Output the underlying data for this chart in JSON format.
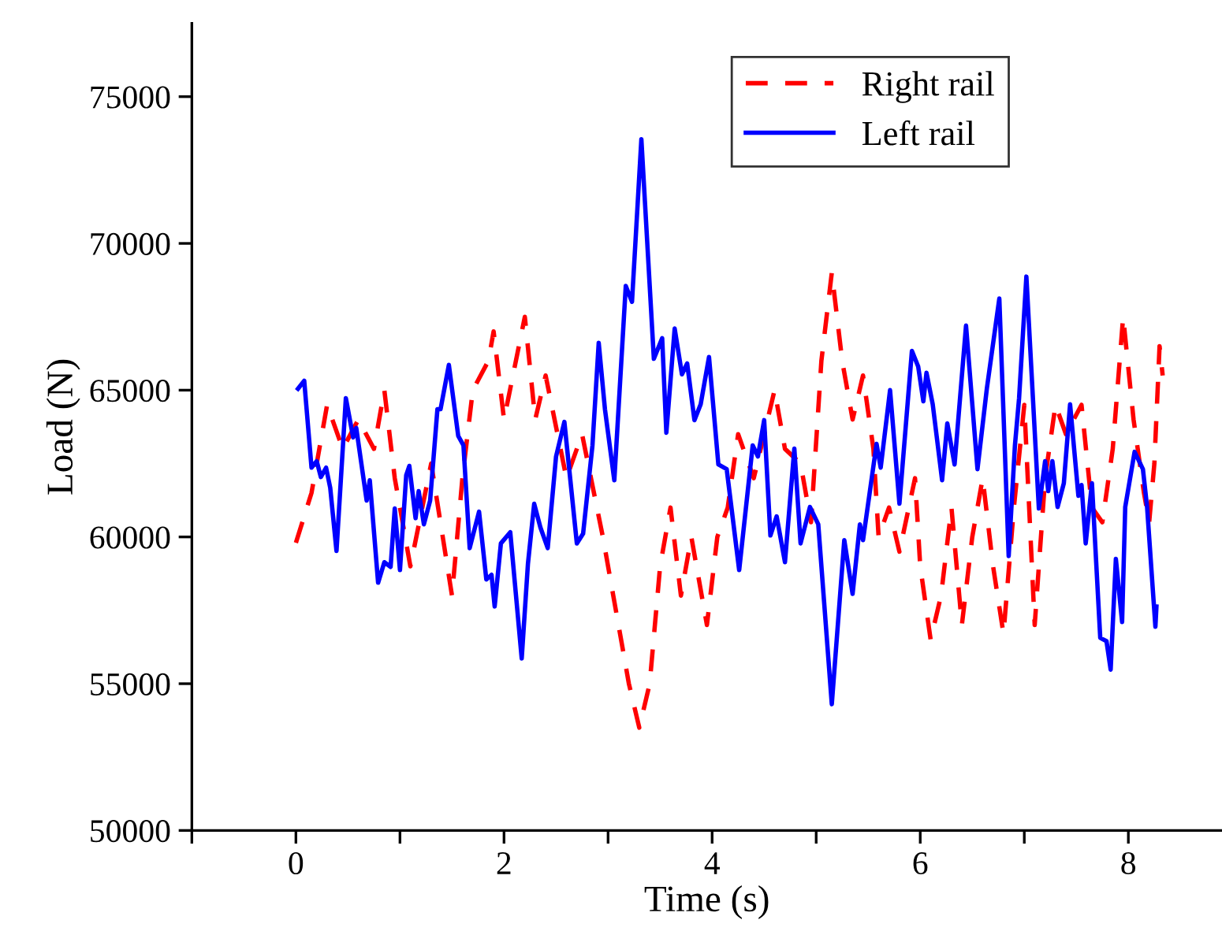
{
  "chart_data": {
    "type": "line",
    "xlabel": "Time (s)",
    "ylabel": "Load (N)",
    "xlim": [
      -1,
      8.9
    ],
    "ylim": [
      50000,
      77500
    ],
    "xticks": [
      {
        "value": -1,
        "label": null
      },
      0,
      {
        "value": 1,
        "label": null
      },
      2,
      {
        "value": 3,
        "label": null
      },
      4,
      {
        "value": 5,
        "label": null
      },
      6,
      {
        "value": 7,
        "label": null
      },
      8
    ],
    "yticks": [
      50000,
      55000,
      60000,
      65000,
      70000,
      75000
    ],
    "grid": false,
    "legend": "top right",
    "marker": "none",
    "series": [
      {
        "name": "Right rail",
        "color": "#ff0000",
        "line_style": "dashed",
        "x": [
          0,
          0.15,
          0.3,
          0.45,
          0.6,
          0.75,
          0.85,
          0.95,
          1.1,
          1.3,
          1.5,
          1.6,
          1.7,
          1.85,
          1.9,
          2.0,
          2.2,
          2.3,
          2.4,
          2.6,
          2.75,
          2.95,
          3.05,
          3.2,
          3.3,
          3.4,
          3.5,
          3.6,
          3.7,
          3.8,
          3.95,
          4.05,
          4.15,
          4.25,
          4.4,
          4.6,
          4.7,
          4.85,
          4.95,
          5.05,
          5.15,
          5.25,
          5.35,
          5.45,
          5.55,
          5.6,
          5.7,
          5.8,
          5.95,
          6.0,
          6.1,
          6.2,
          6.3,
          6.4,
          6.5,
          6.6,
          6.7,
          6.8,
          6.9,
          7.0,
          7.1,
          7.2,
          7.3,
          7.4,
          7.55,
          7.65,
          7.75,
          7.85,
          7.95,
          8.05,
          8.15,
          8.2,
          8.25,
          8.3,
          8.33
        ],
        "values": [
          59800,
          61500,
          64500,
          63000,
          64000,
          63000,
          65000,
          62000,
          59000,
          62500,
          58000,
          62000,
          65000,
          66000,
          67000,
          64000,
          67500,
          64000,
          65500,
          62000,
          63500,
          60000,
          58000,
          55000,
          53500,
          55000,
          59000,
          61000,
          58000,
          60000,
          57000,
          60000,
          61000,
          63500,
          62000,
          65000,
          63000,
          62500,
          60500,
          66000,
          69000,
          66000,
          64000,
          65500,
          63000,
          60000,
          61000,
          59500,
          62000,
          59000,
          56500,
          58000,
          61000,
          57000,
          60000,
          62000,
          59000,
          56700,
          61000,
          64500,
          57000,
          62000,
          64500,
          63500,
          64500,
          61000,
          60500,
          63000,
          67500,
          64000,
          61500,
          60500,
          62500,
          66500,
          65500
        ]
      },
      {
        "name": "Left rail",
        "color": "#0000ff",
        "line_style": "solid",
        "x": [
          0.02,
          0.08,
          0.15,
          0.2,
          0.24,
          0.29,
          0.33,
          0.39,
          0.48,
          0.55,
          0.58,
          0.68,
          0.71,
          0.79,
          0.85,
          0.91,
          0.95,
          1.0,
          1.06,
          1.09,
          1.15,
          1.18,
          1.23,
          1.29,
          1.36,
          1.39,
          1.47,
          1.56,
          1.61,
          1.67,
          1.76,
          1.83,
          1.88,
          1.91,
          1.97,
          2.06,
          2.17,
          2.23,
          2.29,
          2.35,
          2.42,
          2.5,
          2.58,
          2.7,
          2.76,
          2.85,
          2.91,
          2.97,
          3.06,
          3.17,
          3.23,
          3.32,
          3.44,
          3.52,
          3.56,
          3.64,
          3.71,
          3.76,
          3.83,
          3.89,
          3.97,
          4.06,
          4.14,
          4.26,
          4.39,
          4.44,
          4.5,
          4.56,
          4.62,
          4.7,
          4.79,
          4.85,
          4.94,
          5.02,
          5.15,
          5.27,
          5.35,
          5.42,
          5.45,
          5.58,
          5.62,
          5.71,
          5.8,
          5.92,
          5.98,
          6.03,
          6.06,
          6.12,
          6.21,
          6.26,
          6.33,
          6.44,
          6.55,
          6.64,
          6.76,
          6.85,
          6.91,
          6.95,
          7.02,
          7.14,
          7.2,
          7.23,
          7.27,
          7.32,
          7.38,
          7.44,
          7.52,
          7.55,
          7.59,
          7.65,
          7.73,
          7.79,
          7.83,
          7.88,
          7.94,
          7.97,
          8.06,
          8.14,
          8.18,
          8.26,
          8.27
        ],
        "values": [
          65050,
          65320,
          62360,
          62580,
          62040,
          62360,
          61670,
          59520,
          64730,
          63390,
          63710,
          61240,
          61930,
          58440,
          59140,
          58980,
          60970,
          58870,
          62100,
          62420,
          60640,
          61560,
          60430,
          61240,
          64350,
          64350,
          65860,
          63440,
          63120,
          59620,
          60860,
          58550,
          58710,
          57630,
          59780,
          60160,
          55860,
          59090,
          61130,
          60320,
          59620,
          62740,
          63920,
          59780,
          60110,
          63120,
          66610,
          64350,
          61930,
          68550,
          68010,
          73550,
          66070,
          66770,
          63550,
          67100,
          65540,
          65910,
          63980,
          64520,
          66130,
          62470,
          62310,
          58870,
          63120,
          62740,
          63980,
          60050,
          60700,
          59140,
          63010,
          59780,
          61020,
          60430,
          54300,
          59890,
          58060,
          60430,
          59890,
          63170,
          62360,
          65000,
          61130,
          66340,
          65810,
          64620,
          65590,
          64520,
          61930,
          63870,
          62470,
          67200,
          62310,
          65050,
          68120,
          59350,
          63120,
          64730,
          68870,
          60970,
          62580,
          61560,
          62580,
          61020,
          61830,
          64520,
          61400,
          61770,
          59780,
          61830,
          56560,
          56450,
          55480,
          59250,
          57100,
          61020,
          62900,
          62310,
          61020,
          56940,
          57630
        ]
      }
    ]
  }
}
